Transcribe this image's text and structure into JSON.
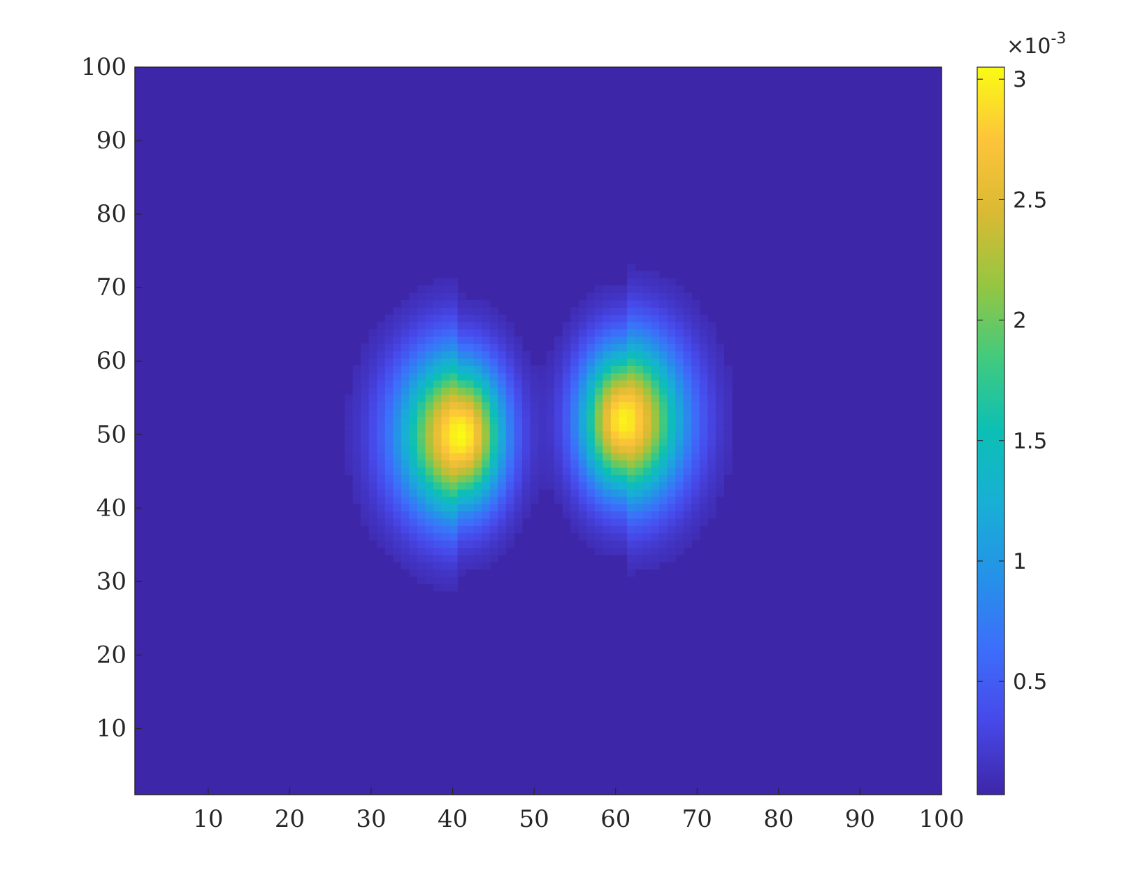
{
  "chart_data": {
    "type": "heatmap",
    "title": "",
    "xlabel": "",
    "ylabel": "",
    "xlim": [
      1,
      100
    ],
    "ylim": [
      1,
      100
    ],
    "x_ticks": [
      "10",
      "20",
      "30",
      "40",
      "50",
      "60",
      "70",
      "80",
      "90",
      "100"
    ],
    "y_ticks": [
      "10",
      "20",
      "30",
      "40",
      "50",
      "60",
      "70",
      "80",
      "90",
      "100"
    ],
    "colormap": "parula",
    "colorbar": {
      "location": "right",
      "limits": [
        3e-05,
        0.00305
      ],
      "tick_values": [
        0.0005,
        0.001,
        0.0015,
        0.002,
        0.0025,
        0.003
      ],
      "tick_labels": [
        "0.5",
        "1",
        "1.5",
        "2",
        "2.5",
        "3"
      ],
      "exponent_label": "×10",
      "exponent_power": "-3"
    },
    "peaks": [
      {
        "x": 41,
        "y": 50,
        "value": 0.00305
      },
      {
        "x": 61,
        "y": 52,
        "value": 0.003
      }
    ],
    "background_value": 3e-05
  }
}
